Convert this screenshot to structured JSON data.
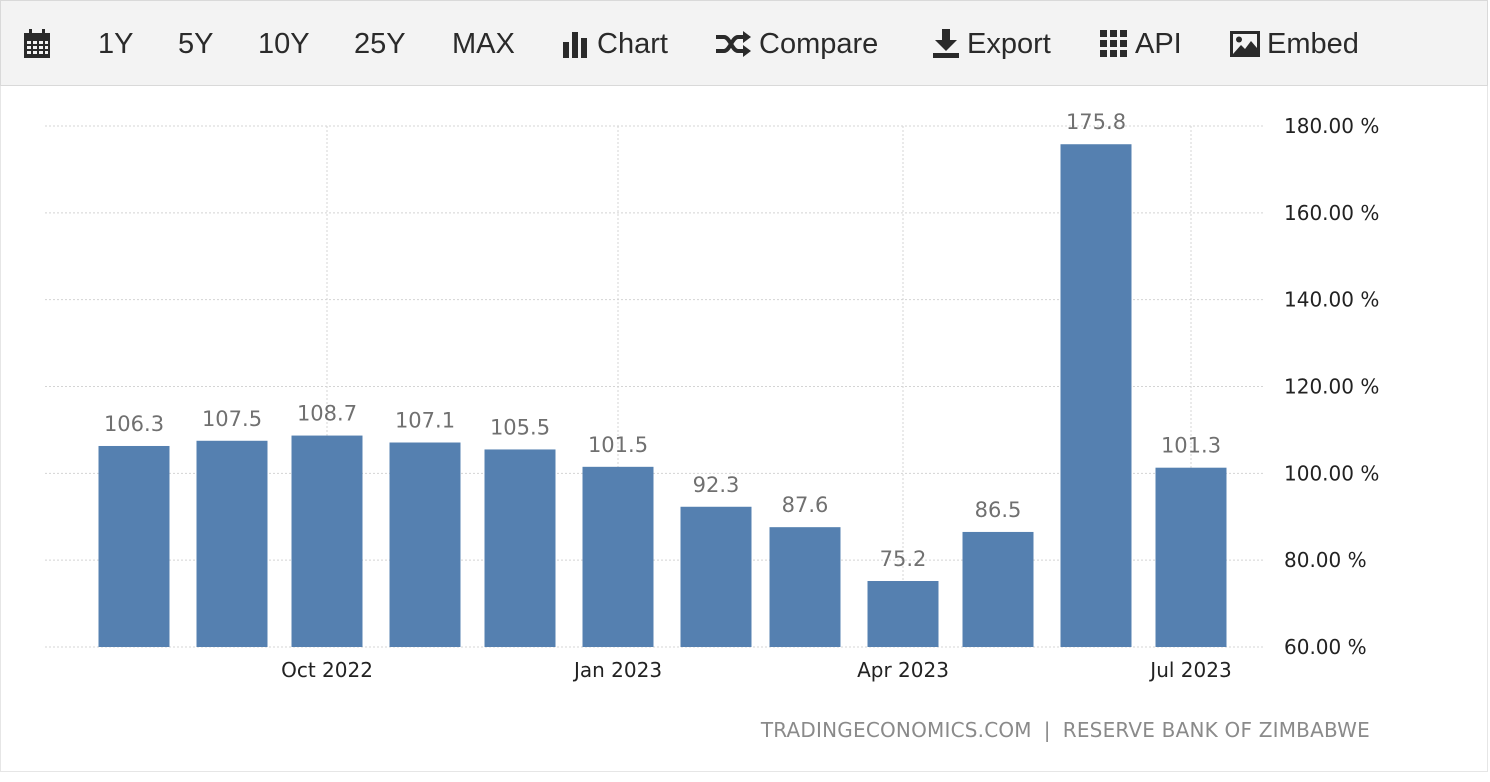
{
  "toolbar": {
    "calendar_icon": "calendar-icon",
    "ranges": [
      "1Y",
      "5Y",
      "10Y",
      "25Y",
      "MAX"
    ],
    "chart_label": "Chart",
    "compare_label": "Compare",
    "export_label": "Export",
    "api_label": "API",
    "embed_label": "Embed"
  },
  "source": {
    "left": "TRADINGECONOMICS.COM",
    "separator": "|",
    "right": "RESERVE BANK OF ZIMBABWE"
  },
  "colors": {
    "bar": "#5580b0",
    "grid": "#d4d4d4",
    "label": "#707070",
    "tick": "#222222"
  },
  "chart_data": {
    "type": "bar",
    "categories": [
      "Aug 2022",
      "Sep 2022",
      "Oct 2022",
      "Nov 2022",
      "Dec 2022",
      "Jan 2023",
      "Feb 2023",
      "Mar 2023",
      "Apr 2023",
      "May 2023",
      "Jun 2023",
      "Jul 2023"
    ],
    "values": [
      106.3,
      107.5,
      108.7,
      107.1,
      105.5,
      101.5,
      92.3,
      87.6,
      75.2,
      86.5,
      175.8,
      101.3
    ],
    "data_labels": [
      "106.3",
      "107.5",
      "108.7",
      "107.1",
      "105.5",
      "101.5",
      "92.3",
      "87.6",
      "75.2",
      "86.5",
      "175.8",
      "101.3"
    ],
    "x_ticks": [
      "Oct 2022",
      "Jan 2023",
      "Apr 2023",
      "Jul 2023"
    ],
    "y_ticks": [
      "180.00 %",
      "160.00 %",
      "140.00 %",
      "120.00 %",
      "100.00 %",
      "80.00 %",
      "60.00 %"
    ],
    "ylim": [
      60,
      180
    ],
    "grid": true,
    "legend": "none"
  }
}
